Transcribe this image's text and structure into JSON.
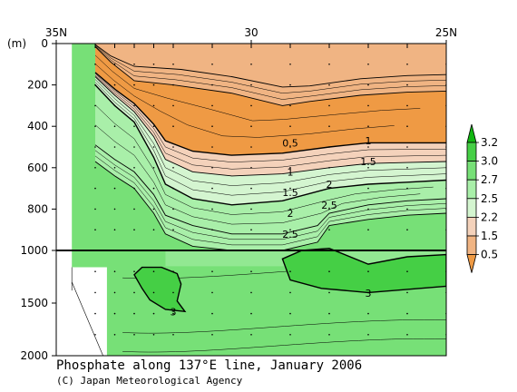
{
  "chart_data": {
    "type": "heatmap",
    "title": "Phosphate along 137°E line, January 2006",
    "credit": "(C) Japan Meteorological Agency",
    "x_axis": {
      "tick_labels": [
        "35N",
        "30",
        "25N"
      ],
      "range": [
        35,
        25
      ],
      "station_marks_lat": [
        34,
        33.5,
        33,
        32.5,
        32,
        31,
        30,
        29,
        28,
        27,
        26,
        25
      ]
    },
    "y_axis": {
      "unit_label": "(m)",
      "tick_labels": [
        "0",
        "200",
        "400",
        "600",
        "800",
        "1000",
        "1500",
        "2000"
      ],
      "segments": [
        {
          "from": 0,
          "to": 1000,
          "step": 200
        },
        {
          "from": 1000,
          "to": 2000,
          "step": 500
        }
      ]
    },
    "colorbar": {
      "levels": [
        "3.2",
        "3.0",
        "2.7",
        "2.5",
        "2.2",
        "1.5",
        "0.5"
      ],
      "colors": [
        "#11b611",
        "#45cf45",
        "#77e077",
        "#a9efa9",
        "#d4f5d0",
        "#f4d2bb",
        "#f0b483",
        "#ef9a44"
      ]
    },
    "contour_labels": [
      {
        "text": "0.5",
        "lat": 29.0,
        "depth": 480
      },
      {
        "text": "1",
        "lat": 29.0,
        "depth": 620
      },
      {
        "text": "1.5",
        "lat": 29.0,
        "depth": 720
      },
      {
        "text": "2",
        "lat": 29.0,
        "depth": 820
      },
      {
        "text": "2.5",
        "lat": 29.0,
        "depth": 920
      },
      {
        "text": "1",
        "lat": 27.0,
        "depth": 470
      },
      {
        "text": "1.5",
        "lat": 27.0,
        "depth": 570
      },
      {
        "text": "2",
        "lat": 28.0,
        "depth": 680
      },
      {
        "text": "2.5",
        "lat": 28.0,
        "depth": 780
      },
      {
        "text": "3",
        "lat": 27.0,
        "depth": 1405
      },
      {
        "text": "3",
        "lat": 32.0,
        "depth": 1580
      }
    ],
    "contours_upper": [
      {
        "value": 0.5,
        "pts": [
          [
            34.0,
            5
          ],
          [
            33.6,
            60
          ],
          [
            33.0,
            110
          ],
          [
            31.8,
            125
          ],
          [
            30.5,
            160
          ],
          [
            29.2,
            210
          ],
          [
            28.5,
            205
          ],
          [
            27.2,
            170
          ],
          [
            26.0,
            155
          ],
          [
            25.0,
            150
          ]
        ]
      },
      {
        "value": 0.8,
        "pts": [
          [
            34.0,
            15
          ],
          [
            33.6,
            90
          ],
          [
            33.0,
            180
          ],
          [
            32.0,
            200
          ],
          [
            30.5,
            240
          ],
          [
            29.2,
            300
          ],
          [
            28.5,
            280
          ],
          [
            27.2,
            250
          ],
          [
            26.0,
            235
          ],
          [
            25.0,
            230
          ]
        ]
      },
      {
        "value": 1.0,
        "pts": [
          [
            34.0,
            140
          ],
          [
            33.5,
            220
          ],
          [
            33.0,
            290
          ],
          [
            32.5,
            390
          ],
          [
            32.2,
            470
          ],
          [
            31.5,
            520
          ],
          [
            30.5,
            540
          ],
          [
            29.2,
            530
          ],
          [
            28.0,
            500
          ],
          [
            27.0,
            480
          ],
          [
            26.0,
            480
          ],
          [
            25.0,
            480
          ]
        ]
      },
      {
        "value": 1.5,
        "pts": [
          [
            34.0,
            160
          ],
          [
            33.5,
            250
          ],
          [
            33.0,
            330
          ],
          [
            32.5,
            450
          ],
          [
            32.2,
            560
          ],
          [
            31.5,
            620
          ],
          [
            30.5,
            640
          ],
          [
            29.2,
            630
          ],
          [
            28.0,
            600
          ],
          [
            27.0,
            580
          ],
          [
            26.0,
            575
          ],
          [
            25.0,
            570
          ]
        ]
      },
      {
        "value": 2.0,
        "pts": [
          [
            34.0,
            200
          ],
          [
            33.5,
            300
          ],
          [
            33.0,
            380
          ],
          [
            32.5,
            550
          ],
          [
            32.2,
            680
          ],
          [
            31.5,
            750
          ],
          [
            30.5,
            780
          ],
          [
            29.2,
            760
          ],
          [
            28.0,
            700
          ],
          [
            27.0,
            680
          ],
          [
            26.0,
            670
          ],
          [
            25.0,
            660
          ]
        ]
      },
      {
        "value": 2.5,
        "pts": [
          [
            34.0,
            490
          ],
          [
            33.5,
            560
          ],
          [
            33.0,
            620
          ],
          [
            32.5,
            730
          ],
          [
            32.2,
            830
          ],
          [
            31.5,
            880
          ],
          [
            30.5,
            920
          ],
          [
            29.2,
            920
          ],
          [
            28.3,
            880
          ],
          [
            28.0,
            820
          ],
          [
            27.0,
            780
          ],
          [
            26.0,
            760
          ],
          [
            25.0,
            750
          ]
        ]
      },
      {
        "value": 2.7,
        "pts": [
          [
            34.0,
            570
          ],
          [
            33.5,
            640
          ],
          [
            33.0,
            700
          ],
          [
            32.5,
            820
          ],
          [
            32.2,
            920
          ],
          [
            31.5,
            980
          ],
          [
            30.5,
            1000
          ],
          [
            29.2,
            1000
          ],
          [
            28.3,
            960
          ],
          [
            28.0,
            880
          ],
          [
            27.0,
            850
          ],
          [
            26.0,
            830
          ],
          [
            25.0,
            820
          ]
        ]
      }
    ],
    "regions_3p0": [
      {
        "value": 3.0,
        "pts": [
          [
            32.8,
            1160
          ],
          [
            32.3,
            1160
          ],
          [
            31.9,
            1220
          ],
          [
            31.8,
            1320
          ],
          [
            31.9,
            1480
          ],
          [
            31.7,
            1580
          ],
          [
            32.2,
            1560
          ],
          [
            32.6,
            1470
          ],
          [
            32.8,
            1360
          ],
          [
            33.0,
            1230
          ]
        ]
      },
      {
        "value": 3.0,
        "pts": [
          [
            25.0,
            1040
          ],
          [
            26.0,
            1060
          ],
          [
            27.0,
            1130
          ],
          [
            28.0,
            990
          ],
          [
            28.7,
            1000
          ],
          [
            29.2,
            1080
          ],
          [
            29.0,
            1280
          ],
          [
            28.2,
            1360
          ],
          [
            27.0,
            1400
          ],
          [
            25.0,
            1340
          ]
        ]
      }
    ]
  }
}
